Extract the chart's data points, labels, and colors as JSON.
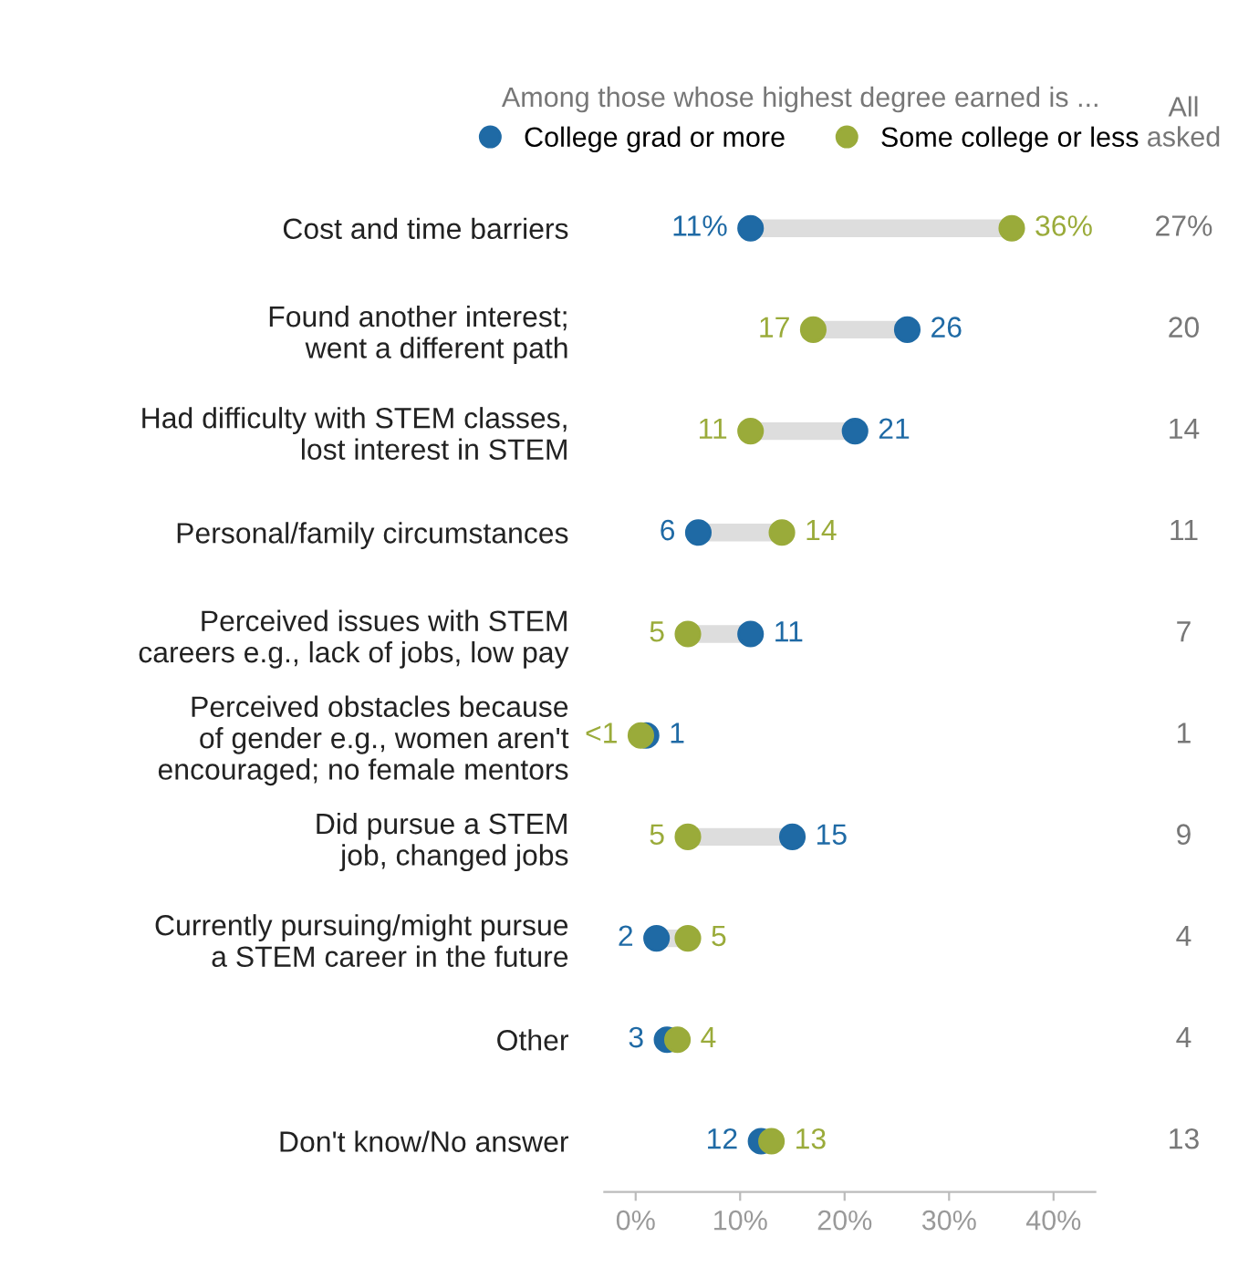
{
  "chart_data": {
    "type": "scatter",
    "orientation": "horizontal",
    "legend_title": "Among those whose highest degree earned is ...",
    "legend": "top",
    "marker": "circle",
    "categories": [
      "Cost and time barriers",
      "Found another interest;\nwent a different path",
      "Had difficulty with STEM classes,\nlost interest in STEM",
      "Personal/family circumstances",
      "Perceived issues with STEM\ncareers e.g., lack of jobs, low pay",
      "Perceived obstacles because\nof gender e.g., women aren't\nencouraged; no female mentors",
      "Did pursue a STEM\njob, changed jobs",
      "Currently pursuing/might pursue\na STEM career in the future",
      "Other",
      "Don't know/No answer"
    ],
    "series": [
      {
        "name": "College grad or more",
        "color": "#1f6aa5",
        "values": [
          11,
          26,
          21,
          6,
          11,
          1,
          15,
          2,
          3,
          12
        ],
        "value_labels": [
          "11%",
          "26",
          "21",
          "6",
          "11",
          "1",
          "15",
          "2",
          "3",
          "12"
        ]
      },
      {
        "name": "Some college or less",
        "color": "#9aab3a",
        "values": [
          36,
          17,
          11,
          14,
          5,
          0.5,
          5,
          5,
          4,
          13
        ],
        "value_labels": [
          "36%",
          "17",
          "11",
          "14",
          "5",
          "<1",
          "5",
          "5",
          "4",
          "13"
        ]
      }
    ],
    "xlim": [
      -3,
      44
    ],
    "xticks": [
      {
        "value": 0,
        "label": "0%"
      },
      {
        "value": 10,
        "label": "10%"
      },
      {
        "value": 20,
        "label": "20%"
      },
      {
        "value": 30,
        "label": "30%"
      },
      {
        "value": 40,
        "label": "40%"
      }
    ],
    "annotations": [
      "All\nasked",
      "27%",
      "20",
      "14",
      "11",
      "7",
      "1",
      "9",
      "4",
      "4",
      "13"
    ]
  }
}
